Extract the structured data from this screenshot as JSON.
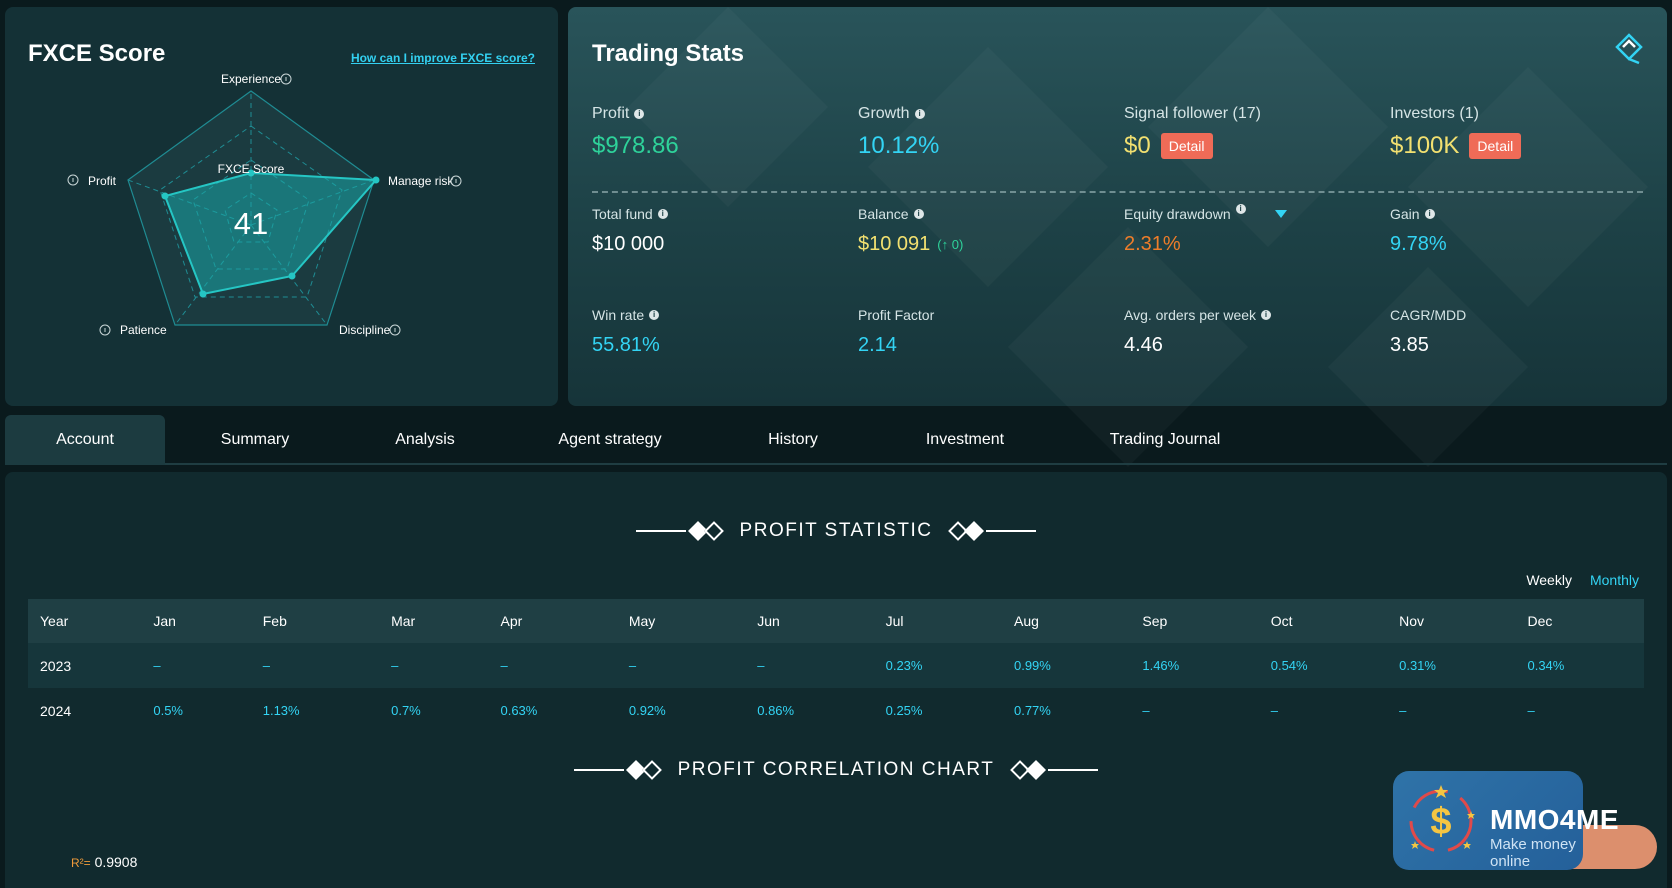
{
  "score_card": {
    "title": "FXCE Score",
    "improve_link": "How can I improve FXCE score?",
    "center_label": "FXCE Score",
    "score": "41",
    "axes": [
      "Experience",
      "Manage risk",
      "Discipline",
      "Patience",
      "Profit"
    ]
  },
  "trading_stats": {
    "title": "Trading Stats",
    "profit": {
      "label": "Profit",
      "value": "$978.86"
    },
    "growth": {
      "label": "Growth",
      "value": "10.12%"
    },
    "signal": {
      "label": "Signal follower (17)",
      "value": "$0",
      "button": "Detail"
    },
    "investors": {
      "label": "Investors (1)",
      "value": "$100K",
      "button": "Detail"
    },
    "total_fund": {
      "label": "Total fund",
      "value": "$10 000"
    },
    "balance": {
      "label": "Balance",
      "value": "$10 091",
      "delta": "(↑ 0)"
    },
    "equity_drawdown": {
      "label": "Equity drawdown",
      "value": "2.31%"
    },
    "gain": {
      "label": "Gain",
      "value": "9.78%"
    },
    "win_rate": {
      "label": "Win rate",
      "value": "55.81%"
    },
    "profit_factor": {
      "label": "Profit Factor",
      "value": "2.14"
    },
    "avg_orders": {
      "label": "Avg. orders per week",
      "value": "4.46"
    },
    "cagr_mdd": {
      "label": "CAGR/MDD",
      "value": "3.85"
    }
  },
  "tabs": [
    "Account",
    "Summary",
    "Analysis",
    "Agent strategy",
    "History",
    "Investment",
    "Trading Journal"
  ],
  "profit_statistic": {
    "title": "PROFIT STATISTIC",
    "weekly": "Weekly",
    "monthly": "Monthly",
    "headers": [
      "Year",
      "Jan",
      "Feb",
      "Mar",
      "Apr",
      "May",
      "Jun",
      "Jul",
      "Aug",
      "Sep",
      "Oct",
      "Nov",
      "Dec"
    ],
    "rows": [
      [
        "2023",
        "–",
        "–",
        "–",
        "–",
        "–",
        "–",
        "0.23%",
        "0.99%",
        "1.46%",
        "0.54%",
        "0.31%",
        "0.34%"
      ],
      [
        "2024",
        "0.5%",
        "1.13%",
        "0.7%",
        "0.63%",
        "0.92%",
        "0.86%",
        "0.25%",
        "0.77%",
        "–",
        "–",
        "–",
        "–"
      ]
    ]
  },
  "correlation": {
    "title": "PROFIT CORRELATION CHART",
    "r2_label": "R²=",
    "r2_value": "0.9908"
  },
  "watermark": {
    "name": "MMO4ME",
    "tagline": "Make money online"
  },
  "colors": {
    "accent": "#33d4f4",
    "profit_green": "#2ed29a",
    "money_yellow": "#f2e070",
    "drawdown_orange": "#ee7d2a",
    "detail_red": "#ef6b57"
  }
}
